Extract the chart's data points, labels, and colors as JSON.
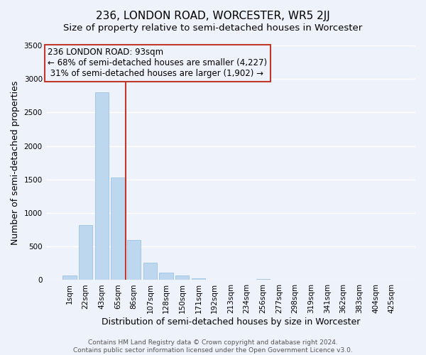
{
  "title": "236, LONDON ROAD, WORCESTER, WR5 2JJ",
  "subtitle": "Size of property relative to semi-detached houses in Worcester",
  "xlabel": "Distribution of semi-detached houses by size in Worcester",
  "ylabel": "Number of semi-detached properties",
  "bar_labels": [
    "1sqm",
    "22sqm",
    "43sqm",
    "65sqm",
    "86sqm",
    "107sqm",
    "128sqm",
    "150sqm",
    "171sqm",
    "192sqm",
    "213sqm",
    "234sqm",
    "256sqm",
    "277sqm",
    "298sqm",
    "319sqm",
    "341sqm",
    "362sqm",
    "383sqm",
    "404sqm",
    "425sqm"
  ],
  "bar_values": [
    70,
    820,
    2800,
    1530,
    600,
    260,
    110,
    70,
    30,
    0,
    0,
    0,
    20,
    0,
    0,
    0,
    0,
    0,
    0,
    0,
    0
  ],
  "bar_color": "#bdd7ee",
  "bar_edge_color": "#9dc3e6",
  "vline_x": 3.5,
  "vline_color": "#c0392b",
  "annotation_line1": "236 LONDON ROAD: 93sqm",
  "annotation_line2": "← 68% of semi-detached houses are smaller (4,227)",
  "annotation_line3": " 31% of semi-detached houses are larger (1,902) →",
  "annotation_box_color": "#c0392b",
  "ylim": [
    0,
    3500
  ],
  "yticks": [
    0,
    500,
    1000,
    1500,
    2000,
    2500,
    3000,
    3500
  ],
  "footer_line1": "Contains HM Land Registry data © Crown copyright and database right 2024.",
  "footer_line2": "Contains public sector information licensed under the Open Government Licence v3.0.",
  "bg_color": "#eef2fa",
  "grid_color": "#ffffff",
  "title_fontsize": 11,
  "subtitle_fontsize": 9.5,
  "axis_label_fontsize": 9,
  "tick_fontsize": 7.5,
  "footer_fontsize": 6.5
}
